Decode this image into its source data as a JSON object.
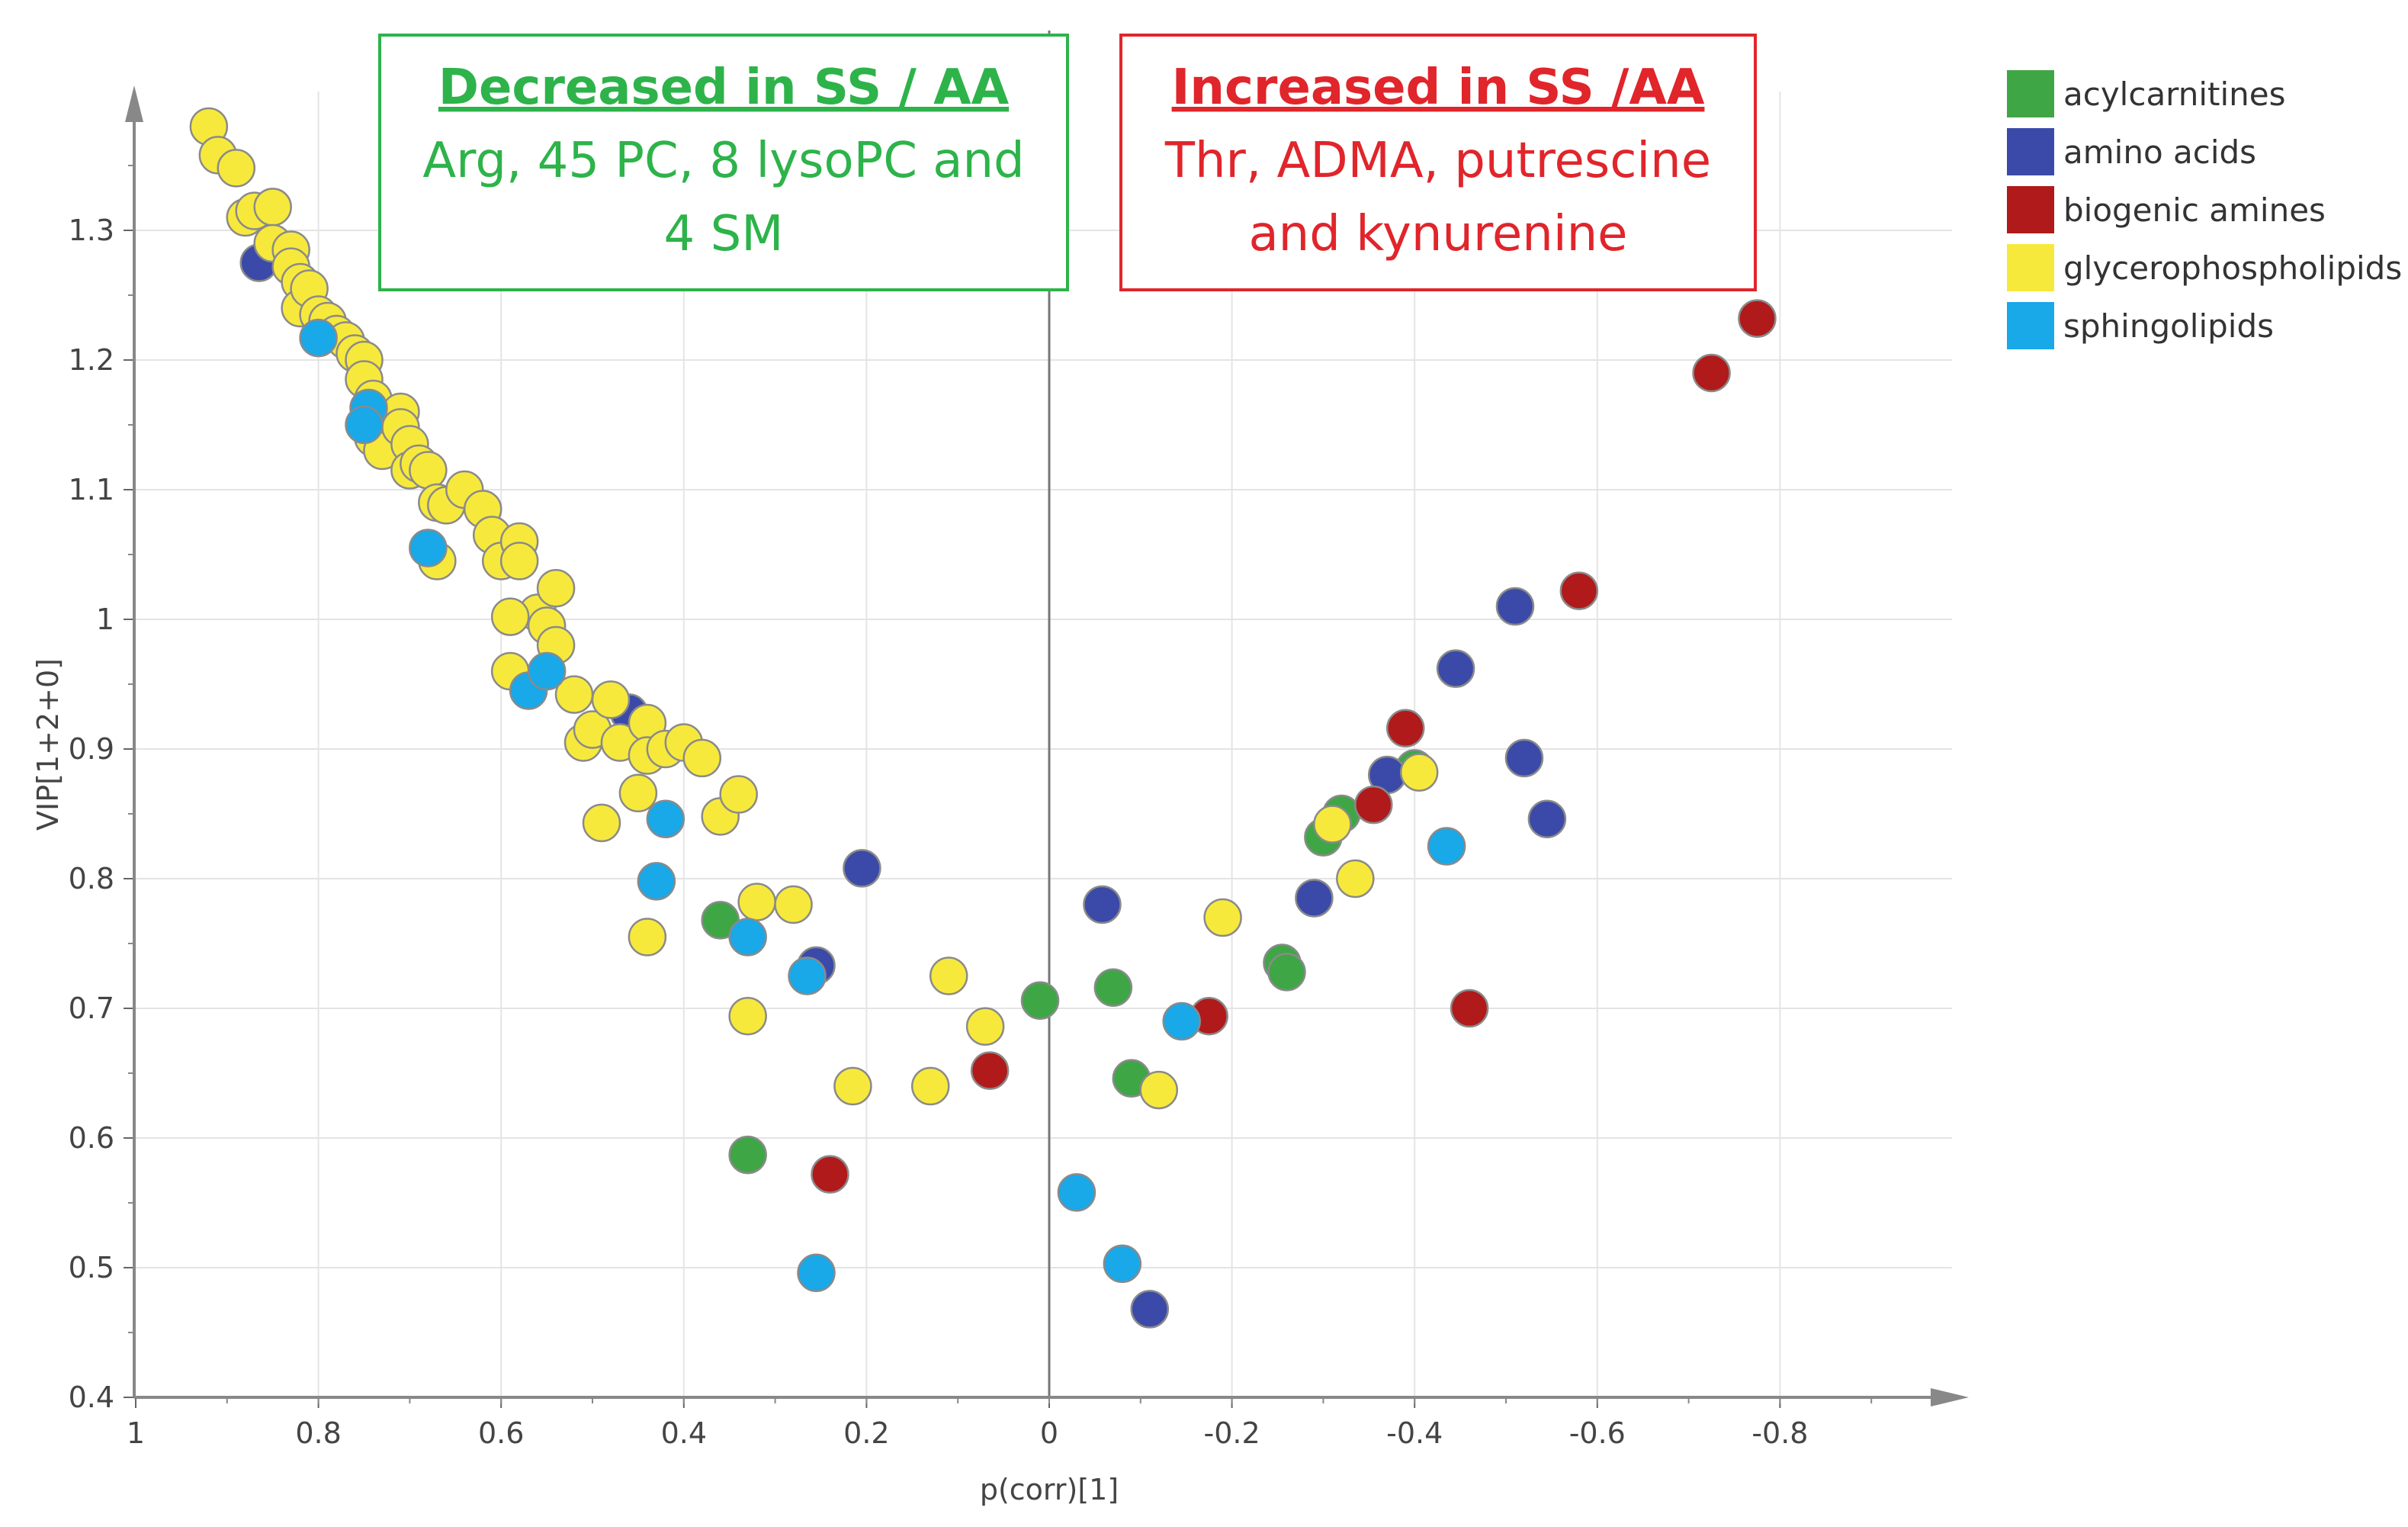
{
  "chart_data": {
    "type": "scatter",
    "xlabel": "p(corr)[1]",
    "ylabel": "VIP[1+2+0]",
    "xlim": [
      1.0,
      -1.0
    ],
    "ylim": [
      0.4,
      1.4
    ],
    "grid": true,
    "x_ticks": [
      {
        "value": 1.0,
        "label": "1"
      },
      {
        "value": 0.8,
        "label": "0.8"
      },
      {
        "value": 0.6,
        "label": "0.6"
      },
      {
        "value": 0.4,
        "label": "0.4"
      },
      {
        "value": 0.2,
        "label": "0.2"
      },
      {
        "value": 0.0,
        "label": "0"
      },
      {
        "value": -0.2,
        "label": "-0.2"
      },
      {
        "value": -0.4,
        "label": "-0.4"
      },
      {
        "value": -0.6,
        "label": "-0.6"
      },
      {
        "value": -0.8,
        "label": "-0.8"
      }
    ],
    "y_ticks": [
      {
        "value": 0.4,
        "label": "0.4"
      },
      {
        "value": 0.5,
        "label": "0.5"
      },
      {
        "value": 0.6,
        "label": "0.6"
      },
      {
        "value": 0.7,
        "label": "0.7"
      },
      {
        "value": 0.8,
        "label": "0.8"
      },
      {
        "value": 0.9,
        "label": "0.9"
      },
      {
        "value": 1.0,
        "label": "1"
      },
      {
        "value": 1.1,
        "label": "1.1"
      },
      {
        "value": 1.2,
        "label": "1.2"
      },
      {
        "value": 1.3,
        "label": "1.3"
      }
    ],
    "legend_position": "top-right",
    "annotations": [
      {
        "title": "Decreased in SS / AA",
        "lines": [
          "Arg, 45 PC, 8 lysoPC and",
          "4 SM"
        ],
        "color": "#2db34a"
      },
      {
        "title": "Increased in SS /AA",
        "lines": [
          "Thr, ADMA, putrescine",
          "and kynurenine"
        ],
        "color": "#e0252b"
      }
    ],
    "series": [
      {
        "name": "acylcarnitines",
        "color": "#3fa646",
        "points": [
          [
            0.36,
            0.768
          ],
          [
            0.33,
            0.587
          ],
          [
            0.01,
            0.706
          ],
          [
            -0.07,
            0.716
          ],
          [
            -0.09,
            0.646
          ],
          [
            -0.255,
            0.735
          ],
          [
            -0.26,
            0.728
          ],
          [
            -0.3,
            0.832
          ],
          [
            -0.32,
            0.85
          ],
          [
            -0.4,
            0.885
          ]
        ]
      },
      {
        "name": "amino acids",
        "color": "#3b4aa8",
        "points": [
          [
            0.865,
            1.275
          ],
          [
            0.46,
            0.928
          ],
          [
            0.205,
            0.808
          ],
          [
            0.255,
            0.733
          ],
          [
            -0.058,
            0.78
          ],
          [
            -0.11,
            0.468
          ],
          [
            -0.29,
            0.785
          ],
          [
            -0.37,
            0.88
          ],
          [
            -0.445,
            0.962
          ],
          [
            -0.51,
            1.01
          ],
          [
            -0.52,
            0.893
          ],
          [
            -0.545,
            0.846
          ]
        ]
      },
      {
        "name": "biogenic amines",
        "color": "#b01a1a",
        "points": [
          [
            0.065,
            0.652
          ],
          [
            0.24,
            0.572
          ],
          [
            -0.175,
            0.694
          ],
          [
            -0.39,
            0.916
          ],
          [
            -0.355,
            0.857
          ],
          [
            -0.46,
            0.7
          ],
          [
            -0.58,
            1.022
          ],
          [
            -0.725,
            1.19
          ],
          [
            -0.775,
            1.232
          ]
        ]
      },
      {
        "name": "glycerophospholipids",
        "color": "#f7e93c",
        "points": [
          [
            0.92,
            1.38
          ],
          [
            0.91,
            1.358
          ],
          [
            0.89,
            1.348
          ],
          [
            0.88,
            1.31
          ],
          [
            0.87,
            1.315
          ],
          [
            0.85,
            1.318
          ],
          [
            0.85,
            1.29
          ],
          [
            0.83,
            1.285
          ],
          [
            0.83,
            1.272
          ],
          [
            0.82,
            1.26
          ],
          [
            0.82,
            1.24
          ],
          [
            0.81,
            1.255
          ],
          [
            0.8,
            1.235
          ],
          [
            0.79,
            1.23
          ],
          [
            0.78,
            1.22
          ],
          [
            0.77,
            1.215
          ],
          [
            0.76,
            1.205
          ],
          [
            0.75,
            1.2
          ],
          [
            0.75,
            1.185
          ],
          [
            0.74,
            1.17
          ],
          [
            0.74,
            1.14
          ],
          [
            0.73,
            1.13
          ],
          [
            0.71,
            1.16
          ],
          [
            0.71,
            1.148
          ],
          [
            0.7,
            1.135
          ],
          [
            0.7,
            1.115
          ],
          [
            0.69,
            1.12
          ],
          [
            0.68,
            1.115
          ],
          [
            0.67,
            1.09
          ],
          [
            0.67,
            1.045
          ],
          [
            0.66,
            1.088
          ],
          [
            0.64,
            1.1
          ],
          [
            0.62,
            1.085
          ],
          [
            0.61,
            1.065
          ],
          [
            0.6,
            1.045
          ],
          [
            0.58,
            1.06
          ],
          [
            0.58,
            1.045
          ],
          [
            0.56,
            1.005
          ],
          [
            0.59,
            1.002
          ],
          [
            0.55,
            0.995
          ],
          [
            0.54,
            0.98
          ],
          [
            0.54,
            1.024
          ],
          [
            0.59,
            0.96
          ],
          [
            0.52,
            0.942
          ],
          [
            0.51,
            0.905
          ],
          [
            0.5,
            0.915
          ],
          [
            0.48,
            0.938
          ],
          [
            0.47,
            0.905
          ],
          [
            0.44,
            0.92
          ],
          [
            0.44,
            0.895
          ],
          [
            0.42,
            0.9
          ],
          [
            0.4,
            0.905
          ],
          [
            0.38,
            0.893
          ],
          [
            0.45,
            0.866
          ],
          [
            0.36,
            0.848
          ],
          [
            0.34,
            0.865
          ],
          [
            0.49,
            0.843
          ],
          [
            0.32,
            0.782
          ],
          [
            0.28,
            0.78
          ],
          [
            0.44,
            0.755
          ],
          [
            0.33,
            0.694
          ],
          [
            0.11,
            0.725
          ],
          [
            0.07,
            0.686
          ],
          [
            0.215,
            0.64
          ],
          [
            0.13,
            0.64
          ],
          [
            -0.12,
            0.637
          ],
          [
            -0.19,
            0.77
          ],
          [
            -0.31,
            0.842
          ],
          [
            -0.335,
            0.8
          ],
          [
            -0.405,
            0.882
          ]
        ]
      },
      {
        "name": "sphingolipids",
        "color": "#19a8e8",
        "points": [
          [
            0.8,
            1.217
          ],
          [
            0.745,
            1.163
          ],
          [
            0.75,
            1.15
          ],
          [
            0.68,
            1.055
          ],
          [
            0.57,
            0.945
          ],
          [
            0.55,
            0.96
          ],
          [
            0.42,
            0.846
          ],
          [
            0.43,
            0.798
          ],
          [
            0.33,
            0.755
          ],
          [
            0.265,
            0.725
          ],
          [
            0.255,
            0.496
          ],
          [
            -0.03,
            0.558
          ],
          [
            -0.08,
            0.503
          ],
          [
            -0.145,
            0.69
          ],
          [
            -0.435,
            0.825
          ]
        ]
      }
    ]
  }
}
